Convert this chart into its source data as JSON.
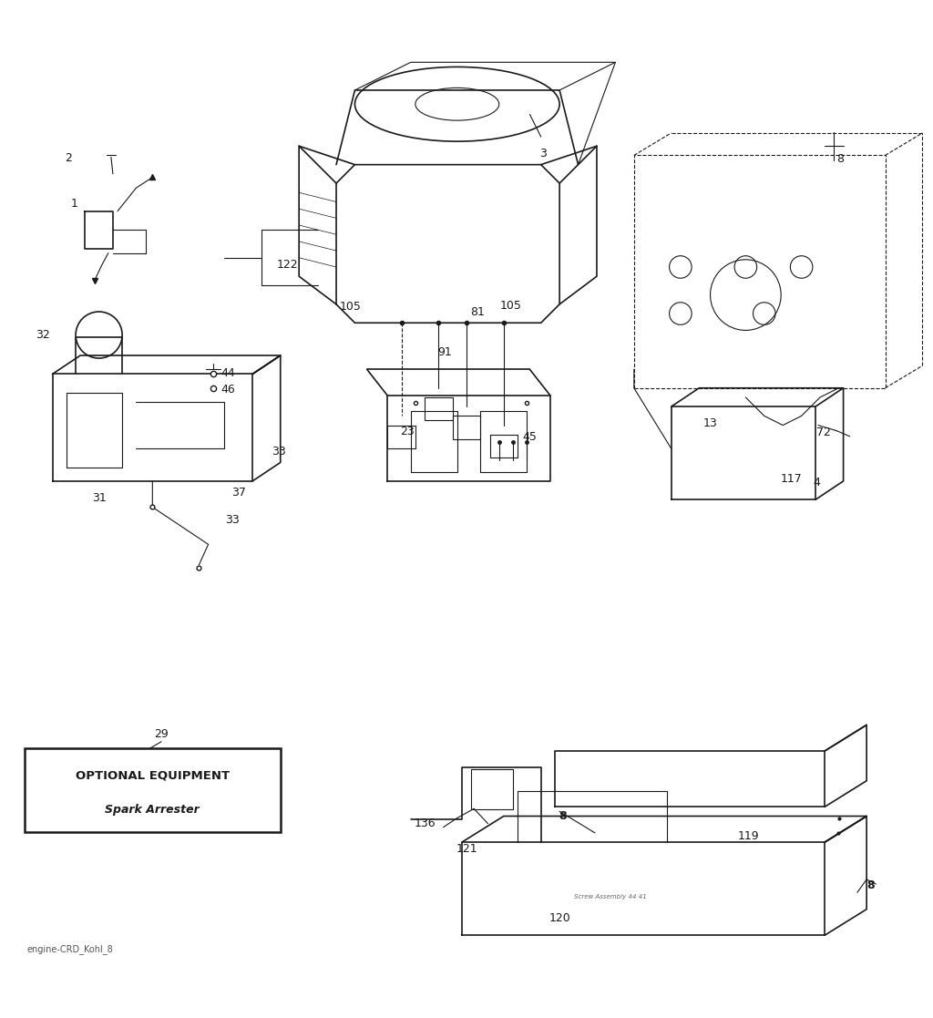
{
  "bg_color": "#ffffff",
  "line_color": "#1a1a1a",
  "label_color": "#1a1a1a",
  "title": "engine-CRD_Kohl_8",
  "box_title1": "OPTIONAL EQUIPMENT",
  "box_title2": "Spark Arrester",
  "figsize": [
    10.24,
    11.17
  ],
  "dpi": 100
}
